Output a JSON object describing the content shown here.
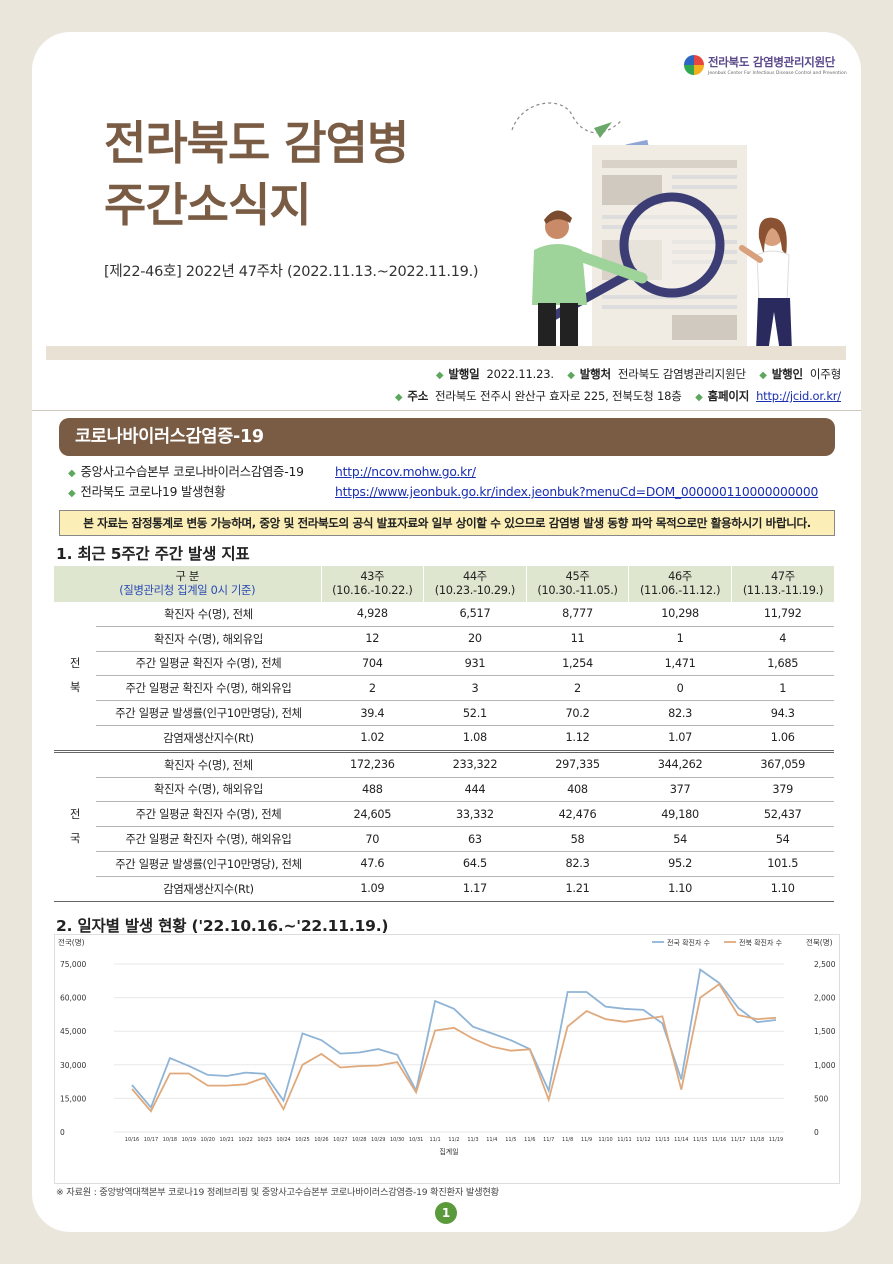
{
  "logo": {
    "name": "전라북도 감염병관리지원단",
    "sub": "Jeonbuk Center For Infectious Disease Control and Prevention"
  },
  "title": {
    "line1": "전라북도 감염병",
    "line2": "주간소식지"
  },
  "issue": "[제22-46호]  2022년 47주차 (2022.11.13.~2022.11.19.)",
  "meta": {
    "pub_date_label": "발행일",
    "pub_date": "2022.11.23.",
    "publisher_label": "발행처",
    "publisher": "전라북도 감염병관리지원단",
    "issuer_label": "발행인",
    "issuer": "이주형",
    "address_label": "주소",
    "address": "전라북도 전주시 완산구 효자로 225, 전북도청 18층",
    "homepage_label": "홈페이지",
    "homepage": "http://jcid.or.kr/"
  },
  "banner": "코로나바이러스감염증-19",
  "links": [
    {
      "label": "중앙사고수습본부 코로나바이러스감염증-19",
      "url": "http://ncov.mohw.go.kr/"
    },
    {
      "label": "전라북도 코로나19 발생현황",
      "url": "https://www.jeonbuk.go.kr/index.jeonbuk?menuCd=DOM_000000110000000000"
    }
  ],
  "notice": "본 자료는 잠정통계로 변동 가능하며, 중앙 및 전라북도의 공식 발표자료와 일부 상이할 수 있으므로 감염병 발생 동향 파악 목적으로만 활용하시기 바랍니다.",
  "section1": "1. 최근 5주간 주간 발생 지표",
  "table": {
    "head_label": "구 분",
    "head_sub": "(질병관리청 집계일 0시 기준)",
    "weeks": [
      {
        "w": "43주",
        "range": "(10.16.-10.22.)"
      },
      {
        "w": "44주",
        "range": "(10.23.-10.29.)"
      },
      {
        "w": "45주",
        "range": "(10.30.-11.05.)"
      },
      {
        "w": "46주",
        "range": "(11.06.-11.12.)"
      },
      {
        "w": "47주",
        "range": "(11.13.-11.19.)"
      }
    ],
    "groups": [
      {
        "region1": "전",
        "region2": "북",
        "rows": [
          {
            "label": "확진자 수(명), 전체",
            "values": [
              "4,928",
              "6,517",
              "8,777",
              "10,298",
              "11,792"
            ]
          },
          {
            "label": "확진자 수(명), 해외유입",
            "values": [
              "12",
              "20",
              "11",
              "1",
              "4"
            ]
          },
          {
            "label": "주간 일평균 확진자 수(명), 전체",
            "values": [
              "704",
              "931",
              "1,254",
              "1,471",
              "1,685"
            ]
          },
          {
            "label": "주간 일평균 확진자 수(명), 해외유입",
            "values": [
              "2",
              "3",
              "2",
              "0",
              "1"
            ]
          },
          {
            "label": "주간 일평균 발생률(인구10만명당), 전체",
            "values": [
              "39.4",
              "52.1",
              "70.2",
              "82.3",
              "94.3"
            ]
          },
          {
            "label": "감염재생산지수(Rt)",
            "values": [
              "1.02",
              "1.08",
              "1.12",
              "1.07",
              "1.06"
            ]
          }
        ]
      },
      {
        "region1": "전",
        "region2": "국",
        "rows": [
          {
            "label": "확진자 수(명), 전체",
            "values": [
              "172,236",
              "233,322",
              "297,335",
              "344,262",
              "367,059"
            ]
          },
          {
            "label": "확진자 수(명), 해외유입",
            "values": [
              "488",
              "444",
              "408",
              "377",
              "379"
            ]
          },
          {
            "label": "주간 일평균 확진자 수(명), 전체",
            "values": [
              "24,605",
              "33,332",
              "42,476",
              "49,180",
              "52,437"
            ]
          },
          {
            "label": "주간 일평균 확진자 수(명), 해외유입",
            "values": [
              "70",
              "63",
              "58",
              "54",
              "54"
            ]
          },
          {
            "label": "주간 일평균 발생률(인구10만명당), 전체",
            "values": [
              "47.6",
              "64.5",
              "82.3",
              "95.2",
              "101.5"
            ]
          },
          {
            "label": "감염재생산지수(Rt)",
            "values": [
              "1.09",
              "1.17",
              "1.21",
              "1.10",
              "1.10"
            ]
          }
        ]
      }
    ]
  },
  "section2": "2. 일자별 발생 현황 ('22.10.16.~'22.11.19.)",
  "chart_data": {
    "type": "line",
    "xlabel": "집계일",
    "ylabel_left": "전국(명)",
    "ylabel_right": "전북(명)",
    "left_ticks": [
      "0",
      "15,000",
      "30,000",
      "45,000",
      "60,000",
      "75,000"
    ],
    "right_ticks": [
      "0",
      "500",
      "1,000",
      "1,500",
      "2,000",
      "2,500"
    ],
    "ylim_left": [
      0,
      75000
    ],
    "ylim_right": [
      0,
      2500
    ],
    "x": [
      "10/16",
      "10/17",
      "10/18",
      "10/19",
      "10/20",
      "10/21",
      "10/22",
      "10/23",
      "10/24",
      "10/25",
      "10/26",
      "10/27",
      "10/28",
      "10/29",
      "10/30",
      "10/31",
      "11/1",
      "11/2",
      "11/3",
      "11/4",
      "11/5",
      "11/6",
      "11/7",
      "11/8",
      "11/9",
      "11/10",
      "11/11",
      "11/12",
      "11/13",
      "11/14",
      "11/15",
      "11/16",
      "11/17",
      "11/18",
      "11/19"
    ],
    "series": [
      {
        "name": "전국 확진자 수",
        "axis": "left",
        "color": "#8fb4d6",
        "values": [
          21000,
          11000,
          33000,
          29500,
          25500,
          25000,
          26500,
          26000,
          14000,
          44000,
          41000,
          35000,
          35500,
          37000,
          34500,
          18500,
          58500,
          55000,
          47000,
          44000,
          41000,
          37000,
          18500,
          62500,
          62500,
          56000,
          55000,
          54500,
          48500,
          23500,
          72500,
          66500,
          55500,
          49000,
          50000
        ]
      },
      {
        "name": "전북 확진자 수",
        "axis": "right",
        "color": "#e0a97c",
        "values": [
          640,
          310,
          870,
          870,
          690,
          690,
          710,
          810,
          340,
          1000,
          1160,
          960,
          980,
          990,
          1040,
          590,
          1510,
          1550,
          1390,
          1270,
          1210,
          1230,
          480,
          1570,
          1800,
          1680,
          1640,
          1680,
          1720,
          630,
          2000,
          2200,
          1740,
          1680,
          1700
        ]
      }
    ]
  },
  "source": "※ 자료원 : 중앙방역대책본부 코로나19 정례브리핑 및 중앙사고수습본부 코로나바이러스감염증-19 확진환자 발생현황",
  "page_number": "1"
}
